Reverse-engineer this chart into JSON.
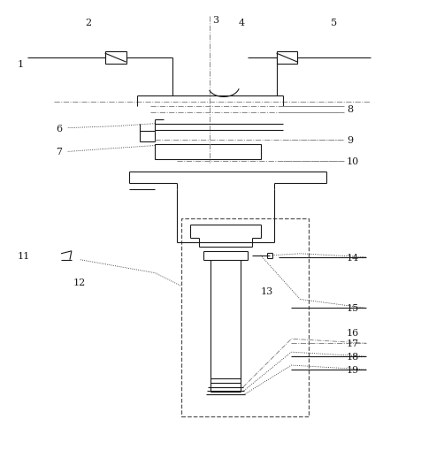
{
  "fig_width": 4.76,
  "fig_height": 5.1,
  "dpi": 100,
  "bg_color": "#ffffff",
  "line_color": "#1a1a1a",
  "lw": 0.8
}
